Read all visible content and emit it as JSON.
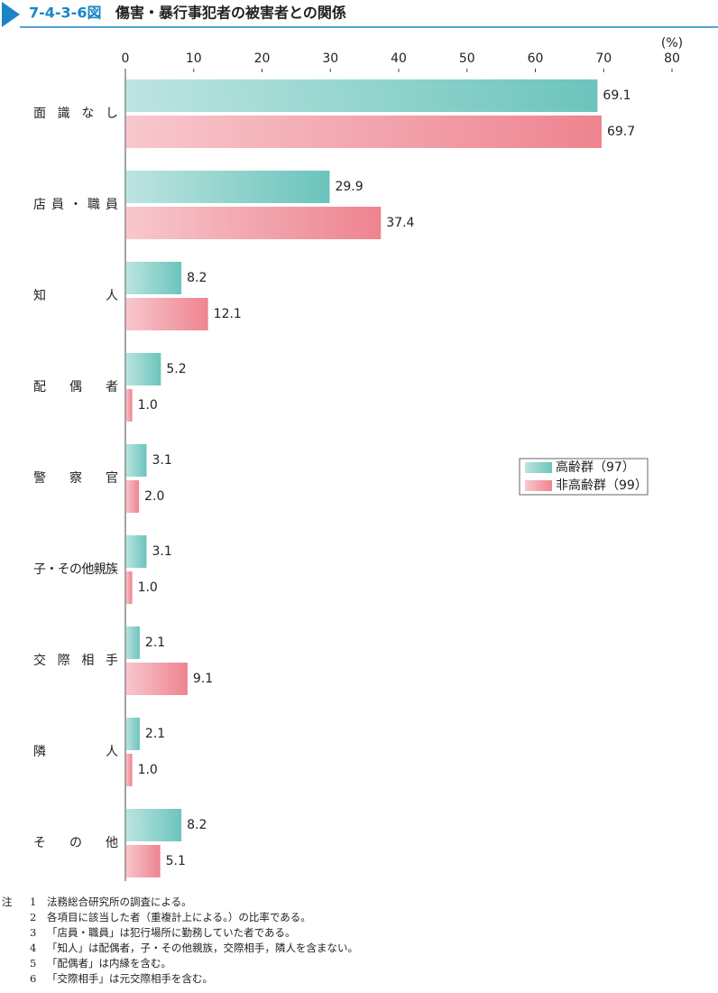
{
  "header": {
    "figure_number": "7-4-3-6図",
    "title": "傷害・暴行事犯者の被害者との関係"
  },
  "chart_data": {
    "type": "hbar",
    "categories": [
      "面識なし",
      "店員・職員",
      "知人",
      "配偶者",
      "警察官",
      "子・その他親族",
      "交際相手",
      "隣人",
      "その他"
    ],
    "series": [
      {
        "name": "高齢群（97）",
        "color": "#6cc4bc",
        "values": [
          69.1,
          29.9,
          8.2,
          5.2,
          3.1,
          3.1,
          2.1,
          2.1,
          8.2
        ],
        "value_labels": [
          "69.1",
          "29.9",
          "8.2",
          "5.2",
          "3.1",
          "3.1",
          "2.1",
          "2.1",
          "8.2"
        ]
      },
      {
        "name": "非高齢群（99）",
        "color": "#ee8490",
        "values": [
          69.7,
          37.4,
          12.1,
          1.0,
          2.0,
          1.0,
          9.1,
          1.0,
          5.1
        ],
        "value_labels": [
          "69.7",
          "37.4",
          "12.1",
          "1.0",
          "2.0",
          "1.0",
          "9.1",
          "1.0",
          "5.1"
        ]
      }
    ],
    "xlim": [
      0,
      80
    ],
    "xticks": [
      0,
      10,
      20,
      30,
      40,
      50,
      60,
      70,
      80
    ],
    "unit_label": "(%)",
    "legend": "right"
  },
  "notes": {
    "label": "注",
    "items": [
      {
        "number": "1",
        "text": "法務総合研究所の調査による。"
      },
      {
        "number": "2",
        "text": "各項目に該当した者（重複計上による。）の比率である。"
      },
      {
        "number": "3",
        "text": "「店員・職員」は犯行場所に勤務していた者である。"
      },
      {
        "number": "4",
        "text": "「知人」は配偶者，子・その他親族，交際相手，隣人を含まない。"
      },
      {
        "number": "5",
        "text": "「配偶者」は内縁を含む。"
      },
      {
        "number": "6",
        "text": "「交際相手」は元交際相手を含む。"
      }
    ]
  }
}
